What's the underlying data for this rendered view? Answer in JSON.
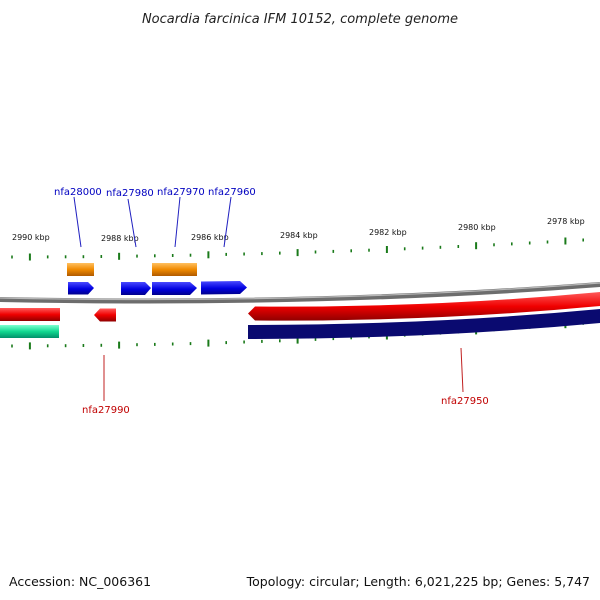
{
  "title": "Nocardia farcinica IFM 10152, complete genome",
  "footer": {
    "accession": "Accession: NC_006361",
    "summary": "Topology: circular; Length: 6,021,225 bp; Genes: 5,747"
  },
  "colors": {
    "forward_cds": "#1010e6",
    "reverse_cds": "#e61010",
    "forward_rna": "#f09010",
    "reverse_rna": "#10c890",
    "forward_bar": "#e61010",
    "reverse_bar": "#0a0a70",
    "backbone": "#888888",
    "ticks": "#1a7a1a",
    "forward_label": "#0000c0",
    "reverse_label": "#c00000"
  },
  "scale": {
    "ticks": [
      {
        "label": "2990 kbp"
      },
      {
        "label": "2988 kbp"
      },
      {
        "label": "2986 kbp"
      },
      {
        "label": "2984 kbp"
      },
      {
        "label": "2982 kbp"
      },
      {
        "label": "2980 kbp"
      },
      {
        "label": "2978 kbp"
      }
    ]
  },
  "genes": [
    {
      "name": "nfa28000",
      "strand": "forward"
    },
    {
      "name": "nfa27980",
      "strand": "forward"
    },
    {
      "name": "nfa27970",
      "strand": "forward"
    },
    {
      "name": "nfa27960",
      "strand": "forward"
    },
    {
      "name": "nfa27990",
      "strand": "reverse"
    },
    {
      "name": "nfa27950",
      "strand": "reverse"
    }
  ]
}
